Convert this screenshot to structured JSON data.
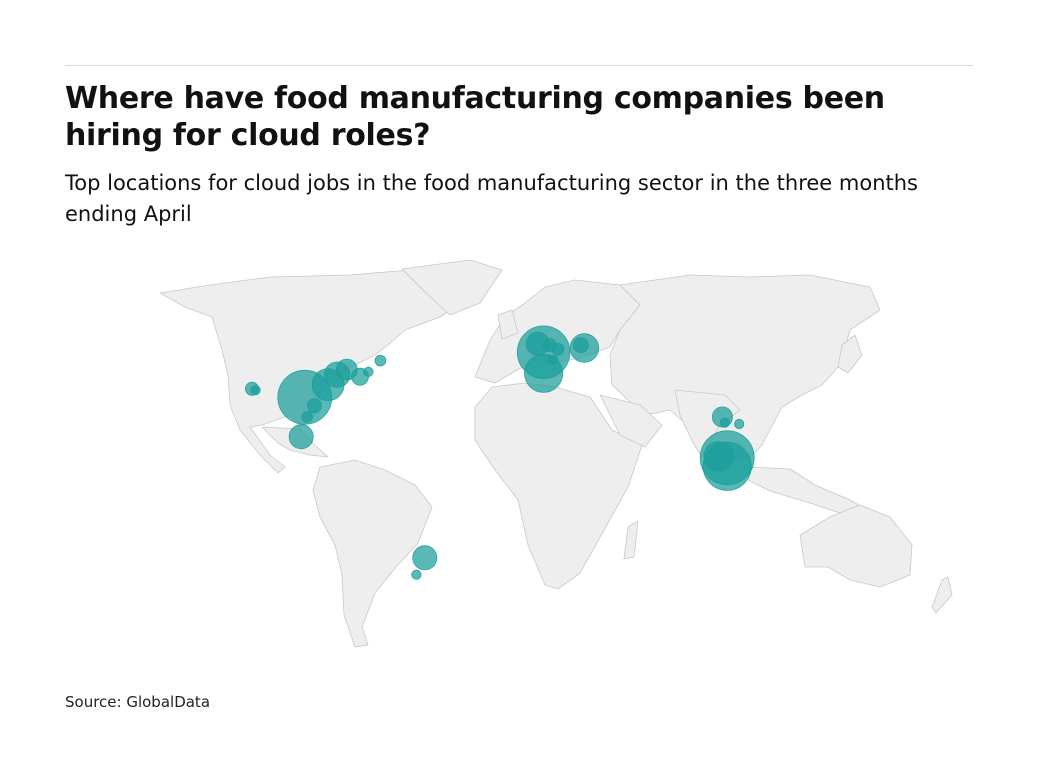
{
  "header": {
    "title": "Where have food manufacturing companies been hiring for cloud roles?",
    "subtitle": "Top locations for cloud jobs in the food manufacturing sector in the three months ending April"
  },
  "footer": {
    "source": "Source: GlobalData"
  },
  "map": {
    "projection": "equirectangular",
    "land_color": "#eeeeee",
    "border_color": "#c8c8c8",
    "bubble_color": "#1a9e9b",
    "bubbles": [
      {
        "lon": -97.5,
        "lat": 33.5,
        "size": 10
      },
      {
        "lon": -87.8,
        "lat": 38.0,
        "size": 3.5
      },
      {
        "lon": -84.0,
        "lat": 41.5,
        "size": 2.2
      },
      {
        "lon": -80.0,
        "lat": 43.3,
        "size": 1.5
      },
      {
        "lon": -74.5,
        "lat": 40.8,
        "size": 1.0
      },
      {
        "lon": -71.0,
        "lat": 42.5,
        "size": 0.3
      },
      {
        "lon": -66.0,
        "lat": 46.5,
        "size": 0.4
      },
      {
        "lon": -93.5,
        "lat": 30.5,
        "size": 0.7
      },
      {
        "lon": -96.5,
        "lat": 26.5,
        "size": 0.4
      },
      {
        "lon": -119.5,
        "lat": 36.5,
        "size": 0.6
      },
      {
        "lon": -118.0,
        "lat": 36.0,
        "size": 0.3
      },
      {
        "lon": -99.0,
        "lat": 19.5,
        "size": 2.0
      },
      {
        "lon": -47.5,
        "lat": -23.5,
        "size": 2.0
      },
      {
        "lon": -51.0,
        "lat": -29.5,
        "size": 0.3
      },
      {
        "lon": 2.0,
        "lat": 49.5,
        "size": 9.5
      },
      {
        "lon": -0.5,
        "lat": 52.5,
        "size": 1.8
      },
      {
        "lon": 4.5,
        "lat": 52.0,
        "size": 0.6
      },
      {
        "lon": 8.0,
        "lat": 50.5,
        "size": 0.5
      },
      {
        "lon": 6.0,
        "lat": 46.8,
        "size": 0.3
      },
      {
        "lon": 2.0,
        "lat": 42.0,
        "size": 5.0
      },
      {
        "lon": 19.0,
        "lat": 51.0,
        "size": 2.8
      },
      {
        "lon": 17.5,
        "lat": 52.0,
        "size": 0.8
      },
      {
        "lon": 76.5,
        "lat": 26.5,
        "size": 1.4
      },
      {
        "lon": 77.5,
        "lat": 24.5,
        "size": 0.3
      },
      {
        "lon": 83.5,
        "lat": 24.0,
        "size": 0.3
      },
      {
        "lon": 78.5,
        "lat": 12.0,
        "size": 10.0
      },
      {
        "lon": 78.5,
        "lat": 9.0,
        "size": 8.0
      },
      {
        "lon": 75.0,
        "lat": 12.5,
        "size": 3.0
      }
    ]
  }
}
